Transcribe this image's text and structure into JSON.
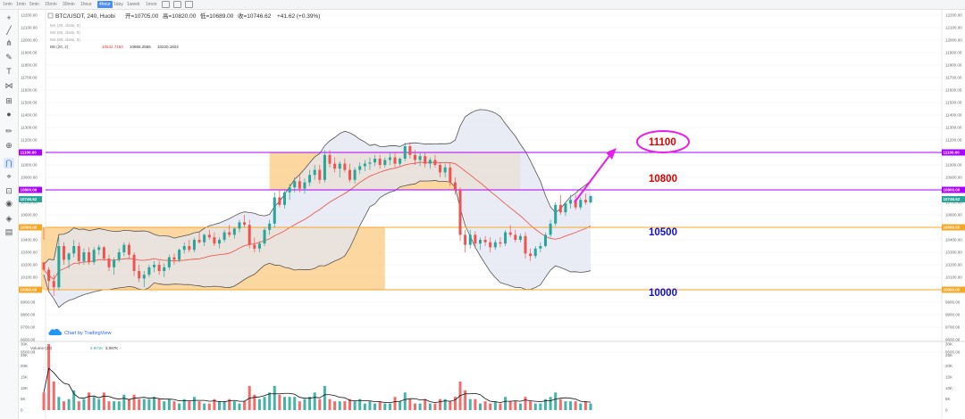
{
  "toolbar": {
    "timeframes": [
      "1min",
      "1min",
      "5min",
      "15min",
      "30min",
      "1hour",
      "4hour",
      "1day",
      "1week",
      "1mon"
    ],
    "active_index": 6
  },
  "left_tools": [
    "crosshair-icon",
    "trendline-icon",
    "fork-icon",
    "brush-icon",
    "text-icon",
    "pattern-icon",
    "ruler-icon",
    "circle-icon",
    "pencil-icon",
    "zoom-icon",
    "magnet-icon",
    "measure-icon",
    "lock-icon",
    "eye-icon",
    "layers-icon",
    "trash-icon"
  ],
  "header": {
    "symbol": "BTC/USDT, 240, Huobi",
    "open": "开=10705.00",
    "high": "高=10820.00",
    "low": "低=10689.00",
    "close": "收=10746.62",
    "change": "+41.62 (+0.39%)"
  },
  "indicators": {
    "ma1": "MA (30, close, 0)",
    "ma2": "MA (60, close, 0)",
    "ma3": "MA (90, close, 0)",
    "bb_label": "BB (20, 2)",
    "bb_v1": "10542.7193",
    "bb_v2": "10865.2556",
    "bb_v3": "10220.1824"
  },
  "annotations": {
    "label_11100": "11100",
    "label_10800": "10800",
    "label_10500": "10500",
    "label_10000": "10000",
    "badge_11100": "11100.00",
    "badge_10800": "10800.00",
    "badge_price": "10746.62",
    "badge_10500": "10500.00",
    "badge_10000": "10000.00",
    "watermark": "Chart by TradingView"
  },
  "volume": {
    "label": "Volume (20)",
    "v1": "2.971K",
    "v2": "3.087K",
    "ticks": [
      "30K",
      "25K",
      "20K",
      "15K",
      "10K",
      "5K",
      "0"
    ]
  },
  "colors": {
    "up": "#26a69a",
    "down": "#ef5350",
    "band_fill": "#e3e5f2",
    "band_line": "#555555",
    "mid_line": "#f05a4f",
    "purple": "#aa00ff",
    "orange": "#f5a623",
    "rect_fill": "#fbc97f",
    "magenta": "#e91eec",
    "red_text": "#e00000",
    "blue_text": "#1010cc"
  },
  "chart_data": {
    "type": "candlestick",
    "title": "BTC/USDT, 240, Huobi",
    "ylim": [
      9500,
      12200
    ],
    "price_axis_ticks": [
      12200,
      12100,
      12000,
      11900,
      11800,
      11700,
      11600,
      11500,
      11400,
      11300,
      11200,
      11100,
      11000,
      10900,
      10800,
      10700,
      10600,
      10500,
      10400,
      10300,
      10200,
      10100,
      10000,
      9900,
      9800,
      9700,
      9600,
      9500
    ],
    "horizontal_levels": [
      11100,
      10800,
      10500,
      10000
    ],
    "last_price": 10746.62,
    "candles_ohlc": [
      [
        10220,
        10500,
        10400,
        10160
      ],
      [
        10160,
        10180,
        9980,
        10070
      ],
      [
        10070,
        10120,
        9950,
        10020
      ],
      [
        10020,
        10420,
        10000,
        10350
      ],
      [
        10350,
        10380,
        10200,
        10240
      ],
      [
        10240,
        10300,
        10170,
        10290
      ],
      [
        10290,
        10400,
        10260,
        10350
      ],
      [
        10350,
        10380,
        10200,
        10230
      ],
      [
        10230,
        10330,
        10200,
        10300
      ],
      [
        10300,
        10340,
        10200,
        10220
      ],
      [
        10220,
        10340,
        10200,
        10320
      ],
      [
        10320,
        10360,
        10280,
        10340
      ],
      [
        10340,
        10350,
        10230,
        10250
      ],
      [
        10250,
        10280,
        10150,
        10180
      ],
      [
        10180,
        10260,
        10120,
        10240
      ],
      [
        10240,
        10330,
        10220,
        10300
      ],
      [
        10300,
        10380,
        10270,
        10360
      ],
      [
        10360,
        10380,
        10250,
        10280
      ],
      [
        10280,
        10300,
        10110,
        10150
      ],
      [
        10150,
        10200,
        10060,
        10090
      ],
      [
        10090,
        10150,
        10020,
        10120
      ],
      [
        10120,
        10200,
        10100,
        10180
      ],
      [
        10180,
        10230,
        10140,
        10200
      ],
      [
        10200,
        10230,
        10120,
        10150
      ],
      [
        10150,
        10210,
        10100,
        10180
      ],
      [
        10180,
        10280,
        10160,
        10260
      ],
      [
        10260,
        10290,
        10200,
        10240
      ],
      [
        10240,
        10330,
        10220,
        10320
      ],
      [
        10320,
        10380,
        10290,
        10350
      ],
      [
        10350,
        10400,
        10300,
        10320
      ],
      [
        10320,
        10420,
        10300,
        10400
      ],
      [
        10400,
        10460,
        10370,
        10380
      ],
      [
        10380,
        10450,
        10350,
        10440
      ],
      [
        10440,
        10480,
        10400,
        10420
      ],
      [
        10420,
        10460,
        10350,
        10370
      ],
      [
        10370,
        10420,
        10330,
        10400
      ],
      [
        10400,
        10480,
        10380,
        10460
      ],
      [
        10460,
        10520,
        10420,
        10440
      ],
      [
        10440,
        10500,
        10410,
        10490
      ],
      [
        10490,
        10560,
        10460,
        10540
      ],
      [
        10540,
        10600,
        10500,
        10520
      ],
      [
        10520,
        10560,
        10330,
        10360
      ],
      [
        10360,
        10420,
        10300,
        10330
      ],
      [
        10330,
        10390,
        10300,
        10370
      ],
      [
        10370,
        10500,
        10350,
        10480
      ],
      [
        10480,
        10560,
        10440,
        10530
      ],
      [
        10530,
        10780,
        10500,
        10740
      ],
      [
        10740,
        10800,
        10660,
        10680
      ],
      [
        10680,
        10800,
        10650,
        10780
      ],
      [
        10780,
        10850,
        10720,
        10820
      ],
      [
        10820,
        10900,
        10780,
        10870
      ],
      [
        10870,
        10920,
        10780,
        10810
      ],
      [
        10810,
        10890,
        10770,
        10860
      ],
      [
        10860,
        10960,
        10830,
        10920
      ],
      [
        10920,
        11000,
        10880,
        10960
      ],
      [
        10960,
        11000,
        10850,
        10880
      ],
      [
        10880,
        11120,
        10860,
        11080
      ],
      [
        11080,
        11120,
        10980,
        11010
      ],
      [
        11010,
        11060,
        10940,
        10970
      ],
      [
        10970,
        11030,
        10900,
        11010
      ],
      [
        11010,
        11050,
        10940,
        10960
      ],
      [
        10960,
        11010,
        10860,
        10880
      ],
      [
        10880,
        10980,
        10850,
        10960
      ],
      [
        10960,
        11020,
        10930,
        10990
      ],
      [
        10990,
        11040,
        10950,
        11010
      ],
      [
        11010,
        11060,
        10960,
        11020
      ],
      [
        11020,
        11080,
        10990,
        11050
      ],
      [
        11050,
        11080,
        10970,
        11000
      ],
      [
        11000,
        11060,
        10980,
        11040
      ],
      [
        11040,
        11100,
        11000,
        11060
      ],
      [
        11060,
        11100,
        10980,
        11010
      ],
      [
        11010,
        11060,
        10990,
        11050
      ],
      [
        11050,
        11180,
        11030,
        11150
      ],
      [
        11150,
        11180,
        11050,
        11080
      ],
      [
        11080,
        11120,
        11000,
        11040
      ],
      [
        11040,
        11100,
        10990,
        11070
      ],
      [
        11070,
        11100,
        10980,
        11010
      ],
      [
        11010,
        11060,
        10970,
        11040
      ],
      [
        11040,
        11080,
        10980,
        11000
      ],
      [
        11000,
        11020,
        10900,
        10940
      ],
      [
        10940,
        11010,
        10900,
        10980
      ],
      [
        10980,
        11020,
        10830,
        10860
      ],
      [
        10860,
        10900,
        10760,
        10800
      ],
      [
        10800,
        10820,
        10390,
        10440
      ],
      [
        10440,
        10480,
        10300,
        10360
      ],
      [
        10360,
        10480,
        10330,
        10440
      ],
      [
        10440,
        10470,
        10330,
        10370
      ],
      [
        10370,
        10420,
        10320,
        10400
      ],
      [
        10400,
        10430,
        10350,
        10380
      ],
      [
        10380,
        10420,
        10300,
        10340
      ],
      [
        10340,
        10400,
        10320,
        10380
      ],
      [
        10380,
        10420,
        10340,
        10370
      ],
      [
        10370,
        10480,
        10350,
        10460
      ],
      [
        10460,
        10520,
        10420,
        10440
      ],
      [
        10440,
        10480,
        10380,
        10400
      ],
      [
        10400,
        10450,
        10380,
        10430
      ],
      [
        10430,
        10460,
        10250,
        10290
      ],
      [
        10290,
        10330,
        10230,
        10270
      ],
      [
        10270,
        10350,
        10250,
        10330
      ],
      [
        10330,
        10380,
        10300,
        10350
      ],
      [
        10350,
        10460,
        10340,
        10440
      ],
      [
        10440,
        10560,
        10420,
        10530
      ],
      [
        10530,
        10700,
        10510,
        10680
      ],
      [
        10680,
        10760,
        10600,
        10620
      ],
      [
        10620,
        10700,
        10590,
        10690
      ],
      [
        10690,
        10760,
        10650,
        10720
      ],
      [
        10720,
        10760,
        10640,
        10660
      ],
      [
        10660,
        10740,
        10640,
        10720
      ],
      [
        10720,
        10770,
        10680,
        10700
      ],
      [
        10700,
        10760,
        10690,
        10750
      ]
    ],
    "volume_values": [
      8,
      30,
      13,
      6,
      4,
      5,
      9,
      4,
      5,
      8,
      6,
      5,
      8,
      4,
      4,
      4,
      7,
      5,
      7,
      5,
      5,
      5,
      6,
      5,
      4,
      5,
      4,
      3,
      5,
      4,
      6,
      4,
      3,
      3,
      5,
      4,
      4,
      5,
      4,
      3,
      4,
      11,
      7,
      5,
      6,
      8,
      11,
      7,
      6,
      6,
      6,
      4,
      5,
      6,
      8,
      5,
      11,
      5,
      4,
      4,
      4,
      5,
      4,
      5,
      3,
      4,
      3,
      4,
      3,
      3,
      6,
      4,
      8,
      5,
      3,
      3,
      5,
      3,
      3,
      5,
      5,
      4,
      6,
      13,
      9,
      5,
      5,
      3,
      4,
      3,
      4,
      3,
      6,
      4,
      4,
      3,
      6,
      4,
      3,
      3,
      5,
      6,
      8,
      5,
      4,
      4,
      4,
      3,
      4,
      3
    ],
    "volume_ylim": [
      0,
      30000
    ],
    "highlight_zones": [
      {
        "from_price": 10000,
        "to_price": 10500
      },
      {
        "from_price": 10800,
        "to_price": 11100
      }
    ]
  }
}
